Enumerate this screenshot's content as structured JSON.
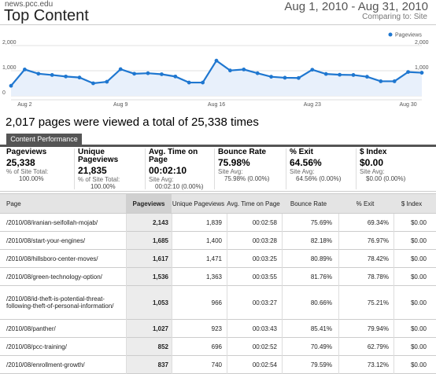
{
  "header": {
    "site": "news.pcc.edu",
    "title": "Top Content",
    "date_range": "Aug 1, 2010 - Aug 31, 2010",
    "comparing": "Comparing to: Site"
  },
  "chart_data": {
    "type": "area",
    "title": "",
    "legend": [
      "Pageviews"
    ],
    "legend_position": "top-right",
    "y_tick_labels": [
      "2,000",
      "1,000",
      "0"
    ],
    "ylim": [
      0,
      2000
    ],
    "x_tick_labels": [
      "Aug 2",
      "Aug 9",
      "Aug 16",
      "Aug 23",
      "Aug 30"
    ],
    "x": [
      "Aug 1",
      "Aug 2",
      "Aug 3",
      "Aug 4",
      "Aug 5",
      "Aug 6",
      "Aug 7",
      "Aug 8",
      "Aug 9",
      "Aug 10",
      "Aug 11",
      "Aug 12",
      "Aug 13",
      "Aug 14",
      "Aug 15",
      "Aug 16",
      "Aug 17",
      "Aug 18",
      "Aug 19",
      "Aug 20",
      "Aug 21",
      "Aug 22",
      "Aug 23",
      "Aug 24",
      "Aug 25",
      "Aug 26",
      "Aug 27",
      "Aug 28",
      "Aug 29",
      "Aug 30",
      "Aug 31"
    ],
    "series": [
      {
        "name": "Pageviews",
        "values": [
          400,
          1050,
          880,
          830,
          770,
          730,
          500,
          560,
          1060,
          880,
          900,
          860,
          770,
          530,
          530,
          1400,
          1010,
          1050,
          900,
          760,
          720,
          710,
          1040,
          870,
          840,
          830,
          760,
          580,
          580,
          950,
          920
        ]
      }
    ],
    "grid": true,
    "color": "#1f77d0"
  },
  "summary": "2,017 pages were viewed a total of 25,338 times",
  "tab_label": "Content Performance",
  "metrics": [
    {
      "label": "Pageviews",
      "value": "25,338",
      "sub1": "% of Site Total:",
      "sub2": "100.00%"
    },
    {
      "label": "Unique Pageviews",
      "value": "21,835",
      "sub1": "% of Site Total:",
      "sub2": "100.00%"
    },
    {
      "label": "Avg. Time on Page",
      "value": "00:02:10",
      "sub1": "Site Avg:",
      "sub2": "00:02:10 (0.00%)"
    },
    {
      "label": "Bounce Rate",
      "value": "75.98%",
      "sub1": "Site Avg:",
      "sub2": "75.98% (0.00%)"
    },
    {
      "label": "% Exit",
      "value": "64.56%",
      "sub1": "Site Avg:",
      "sub2": "64.56% (0.00%)"
    },
    {
      "label": "$ Index",
      "value": "$0.00",
      "sub1": "Site Avg:",
      "sub2": "$0.00 (0.00%)"
    }
  ],
  "table": {
    "headers": [
      "Page",
      "Pageviews",
      "Unique Pageviews",
      "Avg. Time on Page",
      "Bounce Rate",
      "% Exit",
      "$ Index"
    ],
    "rows": [
      [
        "/2010/08/iranian-seifollah-mojab/",
        "2,143",
        "1,839",
        "00:02:58",
        "75.69%",
        "69.34%",
        "$0.00"
      ],
      [
        "/2010/08/start-your-engines/",
        "1,685",
        "1,400",
        "00:03:28",
        "82.18%",
        "76.97%",
        "$0.00"
      ],
      [
        "/2010/08/hillsboro-center-moves/",
        "1,617",
        "1,471",
        "00:03:25",
        "80.89%",
        "78.42%",
        "$0.00"
      ],
      [
        "/2010/08/green-technology-option/",
        "1,536",
        "1,363",
        "00:03:55",
        "81.76%",
        "78.78%",
        "$0.00"
      ],
      [
        "/2010/08/id-theft-is-potential-threat-following-theft-of-personal-information/",
        "1,053",
        "966",
        "00:03:27",
        "80.66%",
        "75.21%",
        "$0.00"
      ],
      [
        "/2010/08/panther/",
        "1,027",
        "923",
        "00:03:43",
        "85.41%",
        "79.94%",
        "$0.00"
      ],
      [
        "/2010/08/pcc-training/",
        "852",
        "696",
        "00:02:52",
        "70.49%",
        "62.79%",
        "$0.00"
      ],
      [
        "/2010/08/enrollment-growth/",
        "837",
        "740",
        "00:02:54",
        "79.59%",
        "73.12%",
        "$0.00"
      ]
    ]
  }
}
